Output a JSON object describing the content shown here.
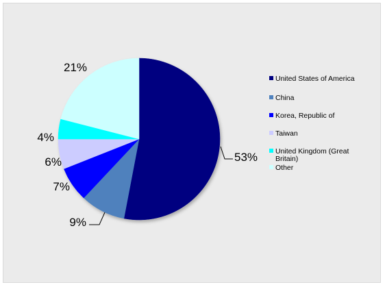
{
  "chart_data": {
    "type": "pie",
    "slices": [
      {
        "label": "United States of America",
        "value": 53,
        "display": "53%",
        "color": "#000080"
      },
      {
        "label": "China",
        "value": 9,
        "display": "9%",
        "color": "#4f81bd"
      },
      {
        "label": "Korea, Republic of",
        "value": 7,
        "display": "7%",
        "color": "#0000ff"
      },
      {
        "label": "Taiwan",
        "value": 6,
        "display": "6%",
        "color": "#ccccff"
      },
      {
        "label": "United Kingdom (Great Britain)",
        "value": 4,
        "display": "4%",
        "color": "#00ffff"
      },
      {
        "label": "Other",
        "value": 21,
        "display": "21%",
        "color": "#ccffff"
      }
    ],
    "legend_position": "right"
  }
}
